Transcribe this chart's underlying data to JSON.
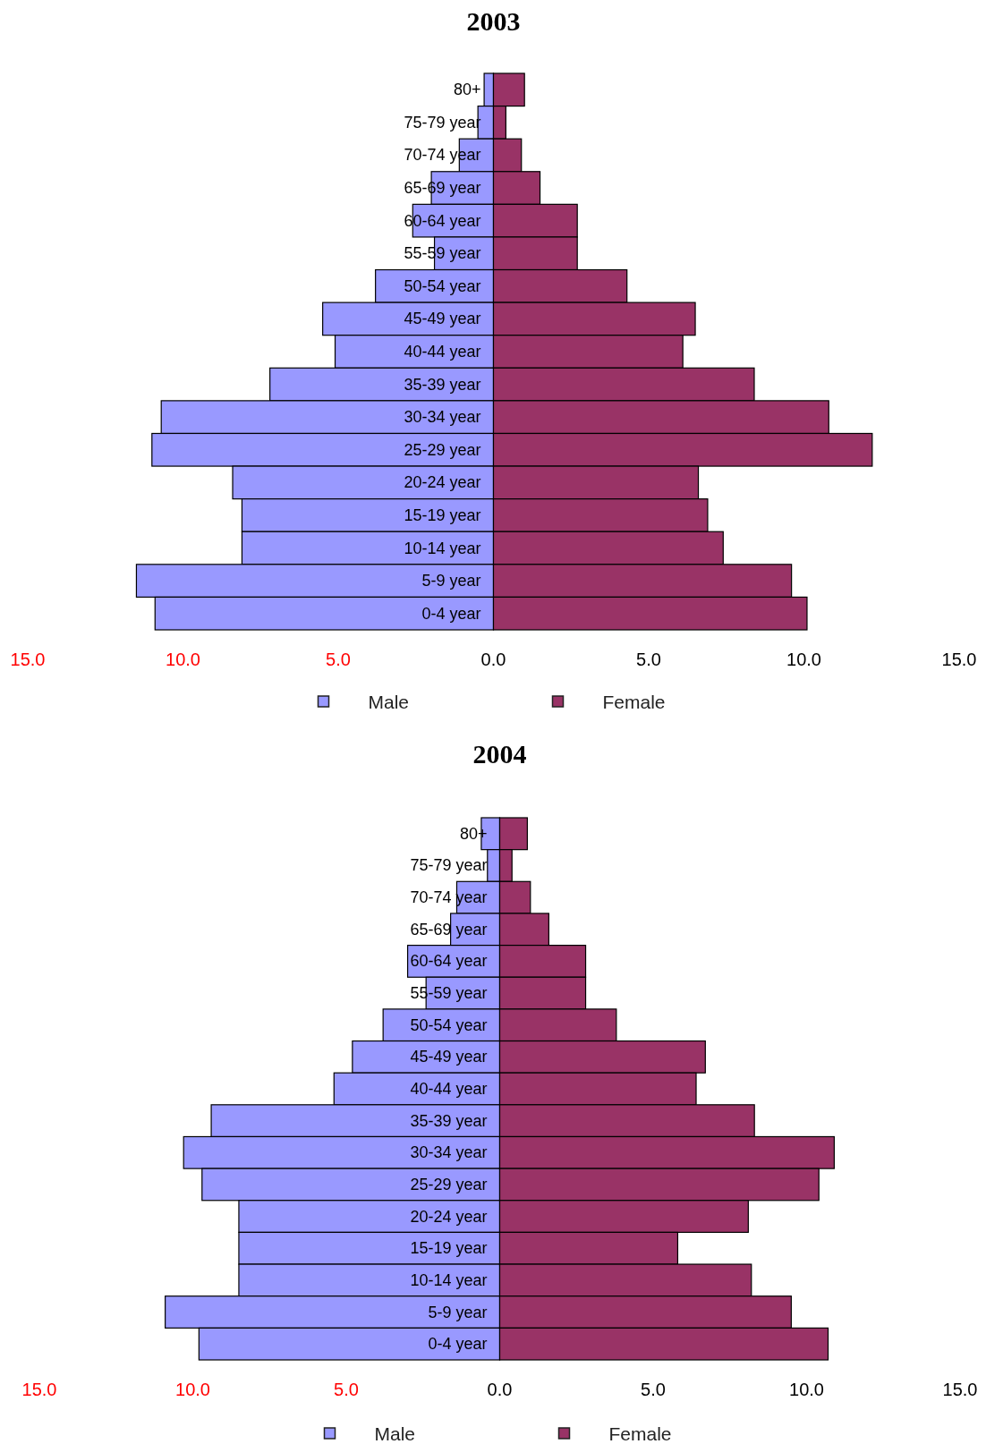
{
  "chart_data": [
    {
      "type": "bar",
      "title": "2003",
      "orientation": "horizontal",
      "stacked": true,
      "legend": "bottom",
      "categories": [
        "80+",
        "75-79 year",
        "70-74 year",
        "65-69 year",
        "60-64 year",
        "55-59 year",
        "50-54 year",
        "45-49 year",
        "40-44 year",
        "35-39 year",
        "30-34 year",
        "25-29 year",
        "20-24 year",
        "15-19 year",
        "10-14 year",
        "5-9 year",
        "0-4 year"
      ],
      "series": [
        {
          "name": "Male",
          "color": "#9999ff",
          "values": [
            -0.3,
            -0.5,
            -1.1,
            -2.0,
            -2.6,
            -1.9,
            -3.8,
            -5.5,
            -5.1,
            -7.2,
            -10.7,
            -11.0,
            -8.4,
            -8.1,
            -8.1,
            -11.5,
            -10.9
          ]
        },
        {
          "name": "Female",
          "color": "#993366",
          "values": [
            1.0,
            0.4,
            0.9,
            1.5,
            2.7,
            2.7,
            4.3,
            6.5,
            6.1,
            8.4,
            10.8,
            12.2,
            6.6,
            6.9,
            7.4,
            9.6,
            10.1
          ]
        }
      ],
      "xlim": [
        -15,
        15
      ],
      "xticks": [
        {
          "value": -15,
          "label": "15.0"
        },
        {
          "value": -10,
          "label": "10.0"
        },
        {
          "value": -5,
          "label": "5.0"
        },
        {
          "value": 0,
          "label": "0.0"
        },
        {
          "value": 5,
          "label": "5.0"
        },
        {
          "value": 10,
          "label": "10.0"
        },
        {
          "value": 15,
          "label": "15.0"
        }
      ]
    },
    {
      "type": "bar",
      "title": "2004",
      "orientation": "horizontal",
      "stacked": true,
      "legend": "bottom",
      "categories": [
        "80+",
        "75-79 year",
        "70-74 year",
        "65-69 year",
        "60-64 year",
        "55-59 year",
        "50-54 year",
        "45-49 year",
        "40-44 year",
        "35-39 year",
        "30-34 year",
        "25-29 year",
        "20-24 year",
        "15-19 year",
        "10-14 year",
        "5-9 year",
        "0-4 year"
      ],
      "series": [
        {
          "name": "Male",
          "color": "#9999ff",
          "values": [
            -0.6,
            -0.4,
            -1.4,
            -1.6,
            -3.0,
            -2.4,
            -3.8,
            -4.8,
            -5.4,
            -9.4,
            -10.3,
            -9.7,
            -8.5,
            -8.5,
            -8.5,
            -10.9,
            -9.8
          ]
        },
        {
          "name": "Female",
          "color": "#993366",
          "values": [
            0.9,
            0.4,
            1.0,
            1.6,
            2.8,
            2.8,
            3.8,
            6.7,
            6.4,
            8.3,
            10.9,
            10.4,
            8.1,
            5.8,
            8.2,
            9.5,
            10.7
          ]
        }
      ],
      "xlim": [
        -15,
        15
      ],
      "xticks": [
        {
          "value": -15,
          "label": "15.0"
        },
        {
          "value": -10,
          "label": "10.0"
        },
        {
          "value": -5,
          "label": "5.0"
        },
        {
          "value": 0,
          "label": "0.0"
        },
        {
          "value": 5,
          "label": "5.0"
        },
        {
          "value": 10,
          "label": "10.0"
        },
        {
          "value": 15,
          "label": "15.0"
        }
      ]
    }
  ]
}
